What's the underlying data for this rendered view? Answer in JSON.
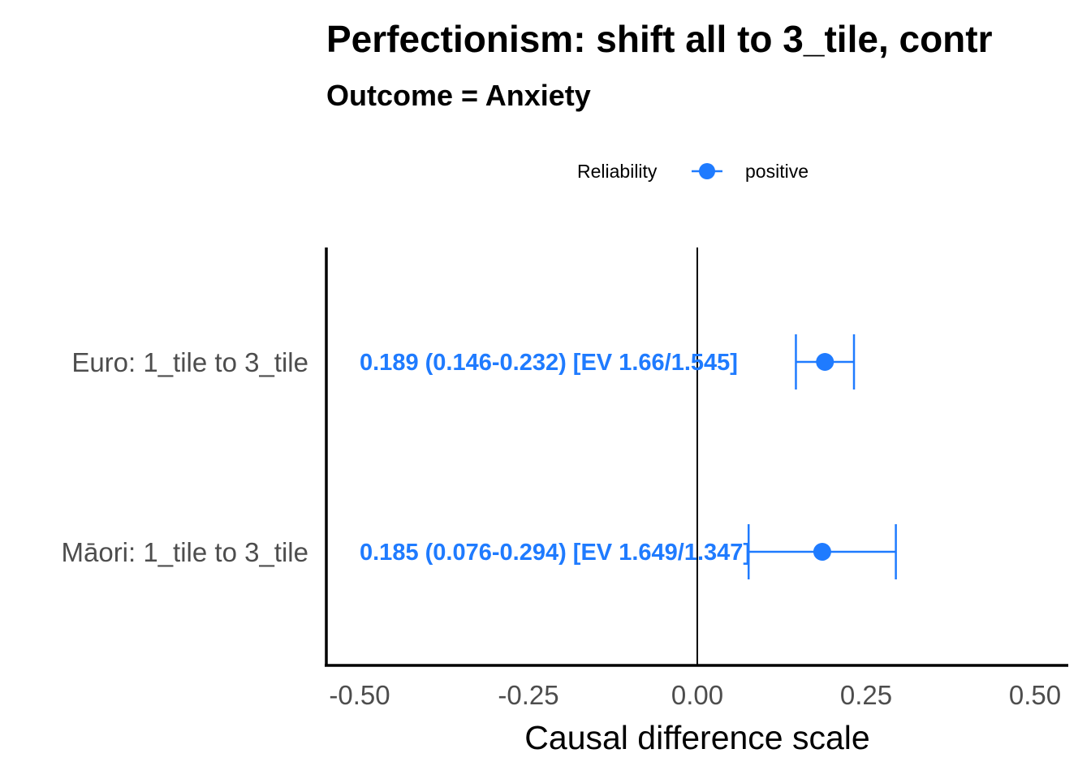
{
  "chart_data": {
    "type": "scatter",
    "title": "Perfectionism: shift all to 3_tile, contr",
    "subtitle": "Outcome = Anxiety",
    "xlabel": "Causal difference scale",
    "ylabel": "",
    "xlim": [
      -0.5,
      0.5
    ],
    "x_ticks": [
      "-0.50",
      "-0.25",
      "0.00",
      "0.25",
      "0.50"
    ],
    "x_tick_values": [
      -0.5,
      -0.25,
      0,
      0.25,
      0.5
    ],
    "reference_line": 0,
    "grid": false,
    "legend": {
      "title": "Reliability",
      "position": "top",
      "entries": [
        {
          "label": "positive",
          "color": "#1f7bff"
        }
      ]
    },
    "series": [
      {
        "name": "positive",
        "color": "#1f7bff",
        "points": [
          {
            "category": "Euro: 1_tile to 3_tile",
            "estimate": 0.189,
            "lower": 0.146,
            "upper": 0.232,
            "label": "0.189 (0.146-0.232) [EV 1.66/1.545]"
          },
          {
            "category": "Māori: 1_tile to 3_tile",
            "estimate": 0.185,
            "lower": 0.076,
            "upper": 0.294,
            "label": "0.185 (0.076-0.294) [EV 1.649/1.347]"
          }
        ]
      }
    ]
  }
}
